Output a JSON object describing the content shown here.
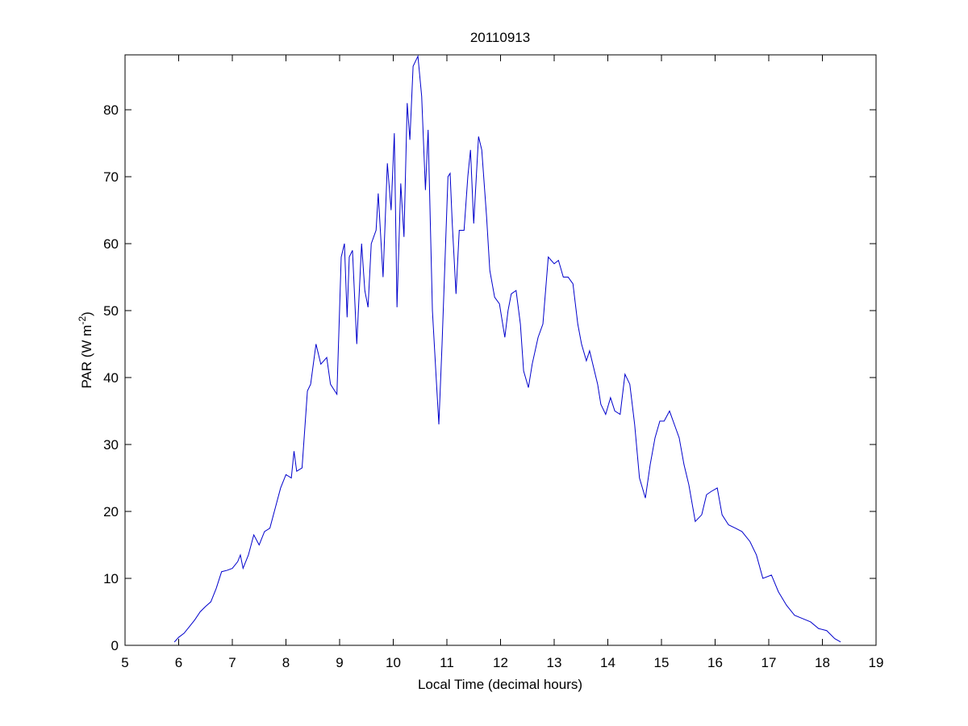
{
  "chart_data": {
    "type": "line",
    "title": "20110913",
    "xlabel": "Local Time (decimal hours)",
    "ylabel": [
      "PAR (W m",
      "-2",
      ")"
    ],
    "xlim": [
      5,
      19
    ],
    "ylim": [
      0,
      88.2
    ],
    "xticks": [
      5,
      6,
      7,
      8,
      9,
      10,
      11,
      12,
      13,
      14,
      15,
      16,
      17,
      18,
      19
    ],
    "yticks": [
      0,
      10,
      20,
      30,
      40,
      50,
      60,
      70,
      80
    ],
    "grid": false,
    "series": [
      {
        "name": "PAR",
        "color": "#0000cc",
        "x": [
          5.92,
          6.0,
          6.1,
          6.2,
          6.3,
          6.4,
          6.5,
          6.6,
          6.7,
          6.8,
          6.9,
          7.0,
          7.1,
          7.15,
          7.2,
          7.3,
          7.4,
          7.5,
          7.6,
          7.7,
          7.8,
          7.9,
          8.0,
          8.1,
          8.15,
          8.2,
          8.3,
          8.4,
          8.46,
          8.56,
          8.65,
          8.76,
          8.83,
          8.95,
          9.03,
          9.09,
          9.14,
          9.18,
          9.24,
          9.32,
          9.41,
          9.47,
          9.53,
          9.59,
          9.68,
          9.72,
          9.81,
          9.89,
          9.96,
          10.02,
          10.07,
          10.14,
          10.2,
          10.26,
          10.31,
          10.37,
          10.46,
          10.53,
          10.6,
          10.65,
          10.73,
          10.8,
          10.85,
          10.91,
          11.02,
          11.06,
          11.1,
          11.17,
          11.23,
          11.32,
          11.39,
          11.44,
          11.5,
          11.59,
          11.65,
          11.74,
          11.8,
          11.89,
          11.98,
          12.08,
          12.14,
          12.2,
          12.29,
          12.37,
          12.43,
          12.52,
          12.59,
          12.7,
          12.79,
          12.89,
          13.0,
          13.08,
          13.17,
          13.26,
          13.35,
          13.44,
          13.51,
          13.6,
          13.66,
          13.75,
          13.81,
          13.87,
          13.96,
          14.05,
          14.13,
          14.23,
          14.32,
          14.41,
          14.5,
          14.59,
          14.7,
          14.79,
          14.88,
          14.97,
          15.05,
          15.15,
          15.24,
          15.33,
          15.42,
          15.51,
          15.63,
          15.75,
          15.84,
          15.93,
          16.04,
          16.13,
          16.25,
          16.38,
          16.5,
          16.65,
          16.77,
          16.89,
          17.05,
          17.18,
          17.33,
          17.48,
          17.63,
          17.78,
          17.93,
          18.08,
          18.23,
          18.34
        ],
        "values": [
          0.5,
          1.2,
          1.8,
          2.8,
          3.8,
          5,
          5.8,
          6.5,
          8.5,
          11,
          11.2,
          11.5,
          12.5,
          13.5,
          11.5,
          13.5,
          16.5,
          15,
          17,
          17.5,
          20.5,
          23.5,
          25.5,
          25,
          29,
          26,
          26.5,
          38,
          39,
          45,
          42,
          43,
          39,
          37.5,
          58,
          60,
          49,
          58,
          59,
          45,
          60,
          53,
          50.5,
          60,
          62,
          67.5,
          55,
          72,
          65,
          76.5,
          50.5,
          69,
          61,
          81,
          75.5,
          86.5,
          88,
          82,
          68,
          77,
          50,
          40,
          33,
          45,
          70,
          70.5,
          63,
          52.5,
          62,
          62,
          70,
          74,
          63,
          76,
          74,
          64,
          56,
          52,
          51,
          46,
          50,
          52.5,
          53,
          48,
          41,
          38.5,
          42,
          46,
          48,
          58,
          57,
          57.5,
          55,
          55,
          54,
          48,
          45,
          42.5,
          44,
          41,
          39,
          36,
          34.5,
          37,
          35,
          34.5,
          40.5,
          39,
          33,
          25,
          22,
          27,
          31,
          33.5,
          33.5,
          35,
          33,
          31,
          27,
          24,
          18.5,
          19.5,
          22.5,
          23,
          23.5,
          19.5,
          18,
          17.5,
          17,
          15.5,
          13.5,
          10,
          10.5,
          8,
          6,
          4.5,
          4,
          3.5,
          2.5,
          2.2,
          1,
          0.5
        ]
      }
    ]
  }
}
